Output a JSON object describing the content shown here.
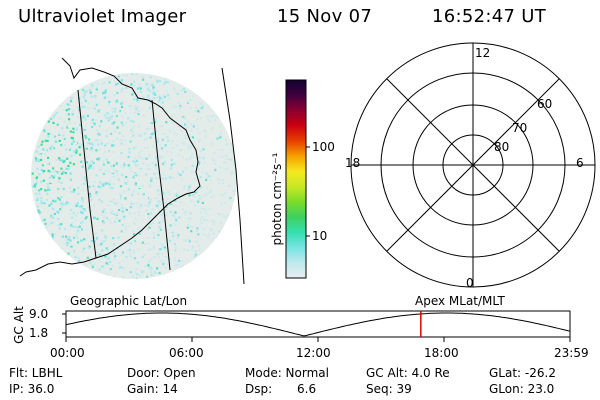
{
  "header": {
    "title": "Ultraviolet Imager",
    "date": "15 Nov 07",
    "time": "16:52:47 UT"
  },
  "colorbar": {
    "unit_label": "photon cm⁻²s⁻¹",
    "tick_labels": [
      "100",
      "10"
    ]
  },
  "polar_plot": {
    "mlt_labels": [
      "12",
      "18",
      "6",
      "0"
    ],
    "lat_labels": [
      "60",
      "70",
      "80"
    ]
  },
  "orbit_panel": {
    "left_label": "Geographic Lat/Lon",
    "right_label": "Apex MLat/MLT",
    "y_axis_label": "GC Alt",
    "y_ticks": [
      "9.0",
      "1.8"
    ],
    "x_ticks": [
      "00:00",
      "06:00",
      "12:00",
      "18:00",
      "23:59"
    ],
    "current_time_fraction": 0.704,
    "marker_color": "#dd0000"
  },
  "status": {
    "flt": "Flt: LBHL",
    "door": "Door: Open",
    "mode": "Mode: Normal",
    "gc_alt": "GC Alt: 4.0 Re",
    "glat": "GLat: -26.2",
    "ip": "IP: 36.0",
    "gain": "Gain: 14",
    "dsp": "Dsp:",
    "dsp_value": "6.6",
    "seq": "Seq: 39",
    "glon": "GLon: 23.0"
  },
  "colors": {
    "colorbar_stops": [
      "#e8eef0",
      "#bfe9ee",
      "#78e3e3",
      "#35e0b0",
      "#3ed060",
      "#7bdc2a",
      "#c8e824",
      "#f5e820",
      "#f6a000",
      "#e84000",
      "#cc0010",
      "#8a0030",
      "#400040",
      "#100030"
    ],
    "image_speckle": [
      "#a9e9ef",
      "#7ee3e6",
      "#5fdfc8",
      "#39e09c",
      "#cde9e9",
      "#e3eceb"
    ]
  }
}
